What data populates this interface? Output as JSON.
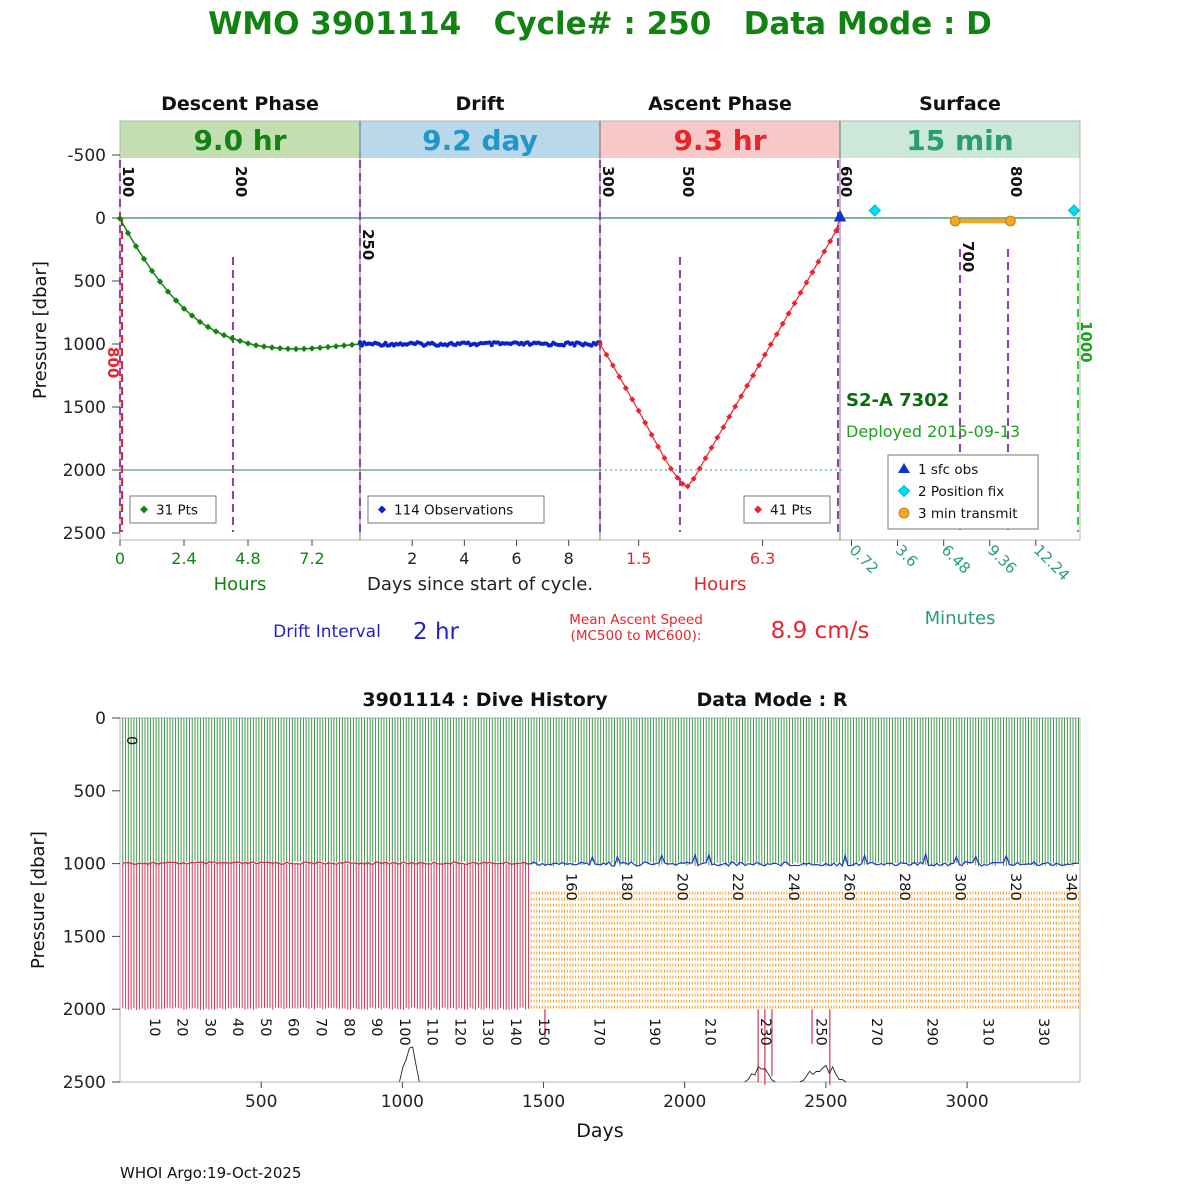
{
  "page": {
    "title": "WMO 3901114   Cycle# : 250   Data Mode : D",
    "title_color": "#128312",
    "footer": "WHOI Argo:19-Oct-2025"
  },
  "chart_data": [
    {
      "id": "cycle_profile",
      "type": "scatter",
      "ylabel": "Pressure [dbar]",
      "ylim": [
        -500,
        2500
      ],
      "y_ticks": [
        -500,
        0,
        500,
        1000,
        1500,
        2000,
        2500
      ],
      "phases": [
        {
          "title": "Descent Phase",
          "duration": "9.0 hr",
          "band_color": "#c3deb1",
          "accent": "#128312",
          "tick_color": "#128312",
          "axis_label": "Hours",
          "span_hours": 9.0,
          "ticks": [
            {
              "v": "0",
              "f": 0.0
            },
            {
              "v": "2.4",
              "f": 0.2667
            },
            {
              "v": "4.8",
              "f": 0.5333
            },
            {
              "v": "7.2",
              "f": 0.8
            }
          ]
        },
        {
          "title": "Drift",
          "duration": "9.2 day",
          "band_color": "#b9d9ea",
          "accent": "#2196c8",
          "tick_color": "#222222",
          "axis_label": "Days since start of cycle.",
          "span_days": 9.2,
          "ticks": [
            {
              "v": "2",
              "f": 0.2174
            },
            {
              "v": "4",
              "f": 0.4348
            },
            {
              "v": "6",
              "f": 0.6522
            },
            {
              "v": "8",
              "f": 0.8696
            }
          ]
        },
        {
          "title": "Ascent Phase",
          "duration": "9.3 hr",
          "band_color": "#f7c8c8",
          "accent": "#e8252c",
          "tick_color": "#e8252c",
          "axis_label": "Hours",
          "span_hours": 9.3,
          "ticks": [
            {
              "v": "1.5",
              "f": 0.1613
            },
            {
              "v": "6.3",
              "f": 0.6774
            }
          ]
        },
        {
          "title": "Surface",
          "duration": "15 min",
          "band_color": "#cde7d9",
          "accent": "#2a9d76",
          "tick_color": "#2a9d76",
          "axis_label": "Minutes",
          "span_minutes": 15,
          "rotate_ticks": 45,
          "ticks": [
            {
              "v": "0.72",
              "f": 0.048
            },
            {
              "v": "3.6",
              "f": 0.24
            },
            {
              "v": "6.48",
              "f": 0.432
            },
            {
              "v": "9.36",
              "f": 0.624
            },
            {
              "v": "12.24",
              "f": 0.816
            }
          ]
        }
      ],
      "ref_lines": {
        "surface_dbar": 0,
        "park_dbar": 2000
      },
      "mc_lines": [
        {
          "code": "100",
          "xf": 0.0,
          "y1": 160,
          "y2": 532,
          "label_y": 166,
          "label_color": "#111111",
          "line_color": "#8e44ad"
        },
        {
          "code": "800",
          "xf": 0.0021,
          "y1": 218,
          "y2": 532,
          "label_y": 347,
          "label_color": "#e8252c",
          "line_color": "#e8252c",
          "dx": -17
        },
        {
          "code": "200",
          "xf": 0.1177,
          "y1": 257,
          "y2": 532,
          "label_y": 166,
          "label_color": "#111111",
          "line_color": "#8e44ad"
        },
        {
          "code": "250",
          "xf": 0.25,
          "y1": 160,
          "y2": 532,
          "label_y": 229,
          "label_color": "#111111",
          "line_color": "#8e44ad"
        },
        {
          "code": "300",
          "xf": 0.5,
          "y1": 160,
          "y2": 532,
          "label_y": 166,
          "label_color": "#111111",
          "line_color": "#8e44ad"
        },
        {
          "code": "500",
          "xf": 0.5833,
          "y1": 257,
          "y2": 532,
          "label_y": 166,
          "label_color": "#111111",
          "line_color": "#8e44ad"
        },
        {
          "code": "600",
          "xf": 0.7479,
          "y1": 160,
          "y2": 532,
          "label_y": 166,
          "label_color": "#111111",
          "line_color": "#8e44ad"
        },
        {
          "code": "700",
          "xf": 0.875,
          "y1": 249,
          "y2": 532,
          "label_y": 241,
          "label_color": "#111111",
          "line_color": "#8e44ad"
        },
        {
          "code": "800",
          "xf": 0.925,
          "y1": 249,
          "y2": 532,
          "label_y": 166,
          "label_color": "#111111",
          "line_color": "#8e44ad"
        },
        {
          "code": "1000",
          "xf": 0.9979,
          "y1": 218,
          "y2": 532,
          "label_y": 321,
          "label_color": "#1fa01f",
          "line_color": "#33cc33"
        }
      ],
      "series": {
        "descent": {
          "label": "31 Pts",
          "color": "#128312",
          "points": [
            [
              0,
              5
            ],
            [
              0.3,
              120
            ],
            [
              0.6,
              225
            ],
            [
              0.9,
              325
            ],
            [
              1.2,
              420
            ],
            [
              1.5,
              505
            ],
            [
              1.8,
              585
            ],
            [
              2.1,
              655
            ],
            [
              2.4,
              720
            ],
            [
              2.7,
              775
            ],
            [
              3.0,
              825
            ],
            [
              3.3,
              865
            ],
            [
              3.6,
              900
            ],
            [
              3.9,
              930
            ],
            [
              4.2,
              955
            ],
            [
              4.5,
              975
            ],
            [
              4.8,
              995
            ],
            [
              5.1,
              1010
            ],
            [
              5.4,
              1020
            ],
            [
              5.7,
              1028
            ],
            [
              6.0,
              1034
            ],
            [
              6.3,
              1038
            ],
            [
              6.6,
              1040
            ],
            [
              6.9,
              1038
            ],
            [
              7.2,
              1035
            ],
            [
              7.5,
              1030
            ],
            [
              7.8,
              1024
            ],
            [
              8.1,
              1018
            ],
            [
              8.4,
              1012
            ],
            [
              8.7,
              1006
            ],
            [
              9.0,
              1000
            ]
          ]
        },
        "drift": {
          "label": "114 Observations",
          "color": "#0a23cc",
          "count": 114,
          "pressure": 1000,
          "jitter": 14
        },
        "ascent": {
          "label": "41 Pts",
          "color": "#e8252c",
          "points": [
            [
              0,
              1000
            ],
            [
              0.25,
              1085
            ],
            [
              0.5,
              1170
            ],
            [
              0.75,
              1260
            ],
            [
              1.0,
              1350
            ],
            [
              1.25,
              1440
            ],
            [
              1.5,
              1530
            ],
            [
              1.75,
              1625
            ],
            [
              2.0,
              1720
            ],
            [
              2.25,
              1815
            ],
            [
              2.5,
              1905
            ],
            [
              2.75,
              1990
            ],
            [
              3.0,
              2060
            ],
            [
              3.2,
              2110
            ],
            [
              3.4,
              2130
            ],
            [
              3.63,
              2070
            ],
            [
              3.86,
              1988
            ],
            [
              4.09,
              1906
            ],
            [
              4.32,
              1824
            ],
            [
              4.55,
              1742
            ],
            [
              4.78,
              1660
            ],
            [
              5.01,
              1578
            ],
            [
              5.24,
              1496
            ],
            [
              5.47,
              1414
            ],
            [
              5.7,
              1332
            ],
            [
              5.93,
              1250
            ],
            [
              6.16,
              1168
            ],
            [
              6.39,
              1086
            ],
            [
              6.62,
              1004
            ],
            [
              6.85,
              922
            ],
            [
              7.08,
              840
            ],
            [
              7.31,
              758
            ],
            [
              7.54,
              676
            ],
            [
              7.77,
              594
            ],
            [
              8.0,
              512
            ],
            [
              8.23,
              430
            ],
            [
              8.46,
              348
            ],
            [
              8.69,
              266
            ],
            [
              8.92,
              184
            ],
            [
              9.15,
              100
            ],
            [
              9.3,
              0
            ]
          ]
        }
      },
      "markers": {
        "sfc_obs": {
          "frac": 1.0,
          "color": "#1133cc"
        },
        "position_fixes": [
          0.145,
          0.975
        ],
        "fix_color": "#00dff0",
        "transmit": {
          "from": 0.48,
          "to": 0.71,
          "color": "#f5a623"
        }
      },
      "legend_right": [
        {
          "marker": "triangle",
          "color": "#1133cc",
          "label": "1 sfc obs"
        },
        {
          "marker": "diamond",
          "color": "#00dff0",
          "label": "2 Position fix"
        },
        {
          "marker": "circle",
          "color": "#f5a623",
          "label": "3 min transmit"
        }
      ],
      "annotations": {
        "float_model": "S2-A 7302",
        "model_color": "#0b6b0b",
        "deployed": "Deployed 2015-09-13",
        "deployed_color": "#1fa01f"
      },
      "captions": {
        "drift_interval_label": "Drift Interval",
        "drift_interval_value": "2 hr",
        "drift_color": "#2222cc",
        "ascent_speed_label": "Mean Ascent Speed",
        "ascent_speed_sub": "(MC500 to MC600):",
        "ascent_speed_value": "8.9 cm/s",
        "ascent_color": "#e8252c"
      }
    },
    {
      "id": "dive_history",
      "type": "bar",
      "title_left": "3901114 : Dive History",
      "title_right": "Data Mode : R",
      "xlabel": "Days",
      "ylabel": "Pressure [dbar]",
      "xlim": [
        0,
        3400
      ],
      "ylim": [
        0,
        2500
      ],
      "x_ticks": [
        500,
        1000,
        1500,
        2000,
        2500,
        3000
      ],
      "y_ticks": [
        0,
        500,
        1000,
        1500,
        2000,
        2500
      ],
      "cycles": {
        "count": 345,
        "period_days": 9.84,
        "descent_floor": 1000,
        "deep_floor": 2000,
        "red_until_day": 1450,
        "park_top": 1192,
        "park_bottom": 1992
      },
      "colors": {
        "descent": "#2f8f3a",
        "deep": "#d02244",
        "park": "#f59a23",
        "drift_early": "#cc2255",
        "drift_late": "#2233cc",
        "terrain": "#222222"
      },
      "deep_spikes": [
        [
          1505,
          2190
        ],
        [
          2260,
          2500
        ],
        [
          2284,
          2520
        ],
        [
          2309,
          2460
        ],
        [
          2451,
          2240
        ],
        [
          2514,
          2520
        ]
      ],
      "terrain": [
        [
          990,
          1060,
          330
        ],
        [
          2213,
          2320,
          160
        ],
        [
          2408,
          2570,
          150
        ]
      ],
      "label_rows": {
        "zero": "0",
        "bottom": [
          10,
          20,
          30,
          40,
          50,
          60,
          70,
          80,
          90,
          100,
          110,
          120,
          130,
          140,
          150,
          170,
          190,
          210,
          230,
          250,
          270,
          290,
          310,
          330
        ],
        "top": [
          160,
          180,
          200,
          220,
          240,
          260,
          280,
          300,
          320,
          340
        ]
      }
    }
  ]
}
